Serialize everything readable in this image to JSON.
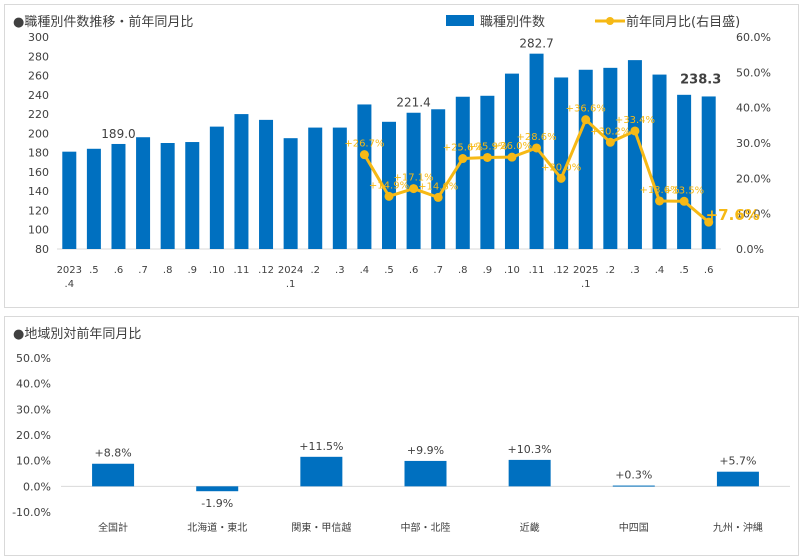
{
  "chart_data": [
    {
      "type": "bar+line",
      "title": "●職種別件数推移・前年同月比",
      "legend": [
        "職種別件数",
        "前年同月比(右目盛)"
      ],
      "categories": [
        "2023\n.4",
        ".5",
        ".6",
        ".7",
        ".8",
        ".9",
        ".10",
        ".11",
        ".12",
        "2024\n.1",
        ".2",
        ".3",
        ".4",
        ".5",
        ".6",
        ".7",
        ".8",
        ".9",
        ".10",
        ".11",
        ".12",
        "2025\n.1",
        ".2",
        ".3",
        ".4",
        ".5",
        ".6"
      ],
      "series": [
        {
          "name": "職種別件数",
          "type": "bar",
          "axis": "left",
          "color": "#0070c0",
          "values": [
            181,
            184,
            189.0,
            196,
            190,
            191,
            207,
            220,
            214,
            195,
            206,
            206,
            230,
            212,
            221.4,
            225,
            238,
            239,
            262,
            282.7,
            258,
            266,
            268,
            276,
            261,
            240,
            238.3
          ]
        },
        {
          "name": "前年同月比(右目盛)",
          "type": "line",
          "axis": "right",
          "color": "#f6b915",
          "values": [
            null,
            null,
            null,
            null,
            null,
            null,
            null,
            null,
            null,
            null,
            null,
            null,
            26.7,
            14.9,
            17.1,
            14.6,
            25.6,
            25.9,
            26.0,
            28.6,
            20.0,
            36.6,
            30.2,
            33.4,
            13.6,
            13.5,
            7.6
          ]
        }
      ],
      "bar_labels": [
        {
          "index": 2,
          "text": "189.0"
        },
        {
          "index": 14,
          "text": "221.4"
        },
        {
          "index": 19,
          "text": "282.7"
        },
        {
          "index": 26,
          "text": "238.3"
        }
      ],
      "line_labels": [
        "+26.7%",
        "+14.9%",
        "+17.1%",
        "+14.6%",
        "+25.6%",
        "+25.9%",
        "+26.0%",
        "+28.6%",
        "+20.0%",
        "+36.6%",
        "+30.2%",
        "+33.4%",
        "+13.6%",
        "+13.5%",
        "+7.6%"
      ],
      "ylim_left": [
        80,
        300
      ],
      "yticks_left": [
        80,
        100,
        120,
        140,
        160,
        180,
        200,
        220,
        240,
        260,
        280,
        300
      ],
      "ylim_right": [
        0,
        60
      ],
      "yticks_right": [
        "0.0%",
        "10.0%",
        "20.0%",
        "30.0%",
        "40.0%",
        "50.0%",
        "60.0%"
      ],
      "grid": false
    },
    {
      "type": "bar",
      "title": "●地域別対前年同月比",
      "categories": [
        "全国計",
        "北海道・東北",
        "関東・甲信越",
        "中部・北陸",
        "近畿",
        "中四国",
        "九州・沖縄"
      ],
      "values": [
        8.8,
        -1.9,
        11.5,
        9.9,
        10.3,
        0.3,
        5.7
      ],
      "labels": [
        "+8.8%",
        "-1.9%",
        "+11.5%",
        "+9.9%",
        "+10.3%",
        "+0.3%",
        "+5.7%"
      ],
      "ylim": [
        -10,
        50
      ],
      "yticks": [
        "-10.0%",
        "0.0%",
        "10.0%",
        "20.0%",
        "30.0%",
        "40.0%",
        "50.0%"
      ],
      "color": "#0070c0",
      "grid": false
    }
  ]
}
